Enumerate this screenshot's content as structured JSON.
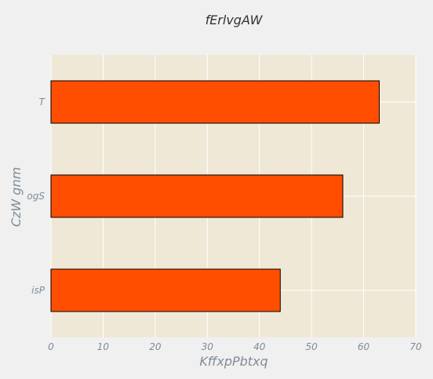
{
  "chart_data": {
    "type": "bar",
    "orientation": "horizontal",
    "title": "fErlvgAW",
    "xlabel": "KffxpPbtxq",
    "ylabel": "CzW gnm",
    "categories": [
      "isP",
      "ogS",
      "T"
    ],
    "values": [
      44,
      56,
      63
    ],
    "xlim": [
      0,
      70
    ],
    "xticks": [
      0,
      10,
      20,
      30,
      40,
      50,
      60,
      70
    ],
    "grid": true,
    "legend": "none",
    "colors": {
      "background": "#f0f0f0",
      "plot_area": "#efe8d6",
      "bar_fill": "#ff4e00",
      "bar_edge": "#000000",
      "grid": "#ffffff",
      "text": "#7f8c96",
      "title": "#333333"
    }
  }
}
